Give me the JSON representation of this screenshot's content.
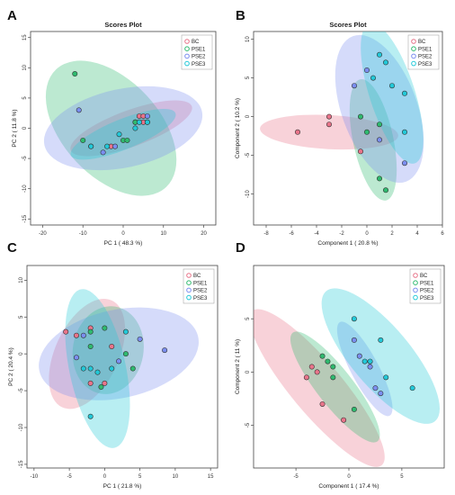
{
  "panels": [
    {
      "letter": "A",
      "title": "Scores Plot",
      "xlabel": "PC 1 ( 48.3 %)",
      "ylabel": "PC 2 ( 11.8 %)",
      "xlim": [
        -23,
        23
      ],
      "ylim": [
        -16,
        16
      ],
      "xticks": [
        -20,
        -10,
        0,
        10,
        20
      ],
      "yticks": [
        -15,
        -10,
        -5,
        0,
        5,
        10,
        15
      ],
      "legend": [
        "BC",
        "PSE1",
        "PSE2",
        "PSE3"
      ]
    },
    {
      "letter": "B",
      "title": "Scores Plot",
      "xlabel": "Component 1 ( 20.8 %)",
      "ylabel": "Component 2 ( 10.2 %)",
      "xlim": [
        -9,
        6
      ],
      "ylim": [
        -14,
        11
      ],
      "xticks": [
        -8,
        -6,
        -4,
        -2,
        0,
        2,
        4,
        6
      ],
      "yticks": [
        -10,
        -5,
        0,
        5,
        10
      ],
      "legend": [
        "BC",
        "PSE1",
        "PSE2",
        "PSE3"
      ]
    },
    {
      "letter": "C",
      "title": "",
      "xlabel": "PC 1 ( 21.8 %)",
      "ylabel": "PC 2 ( 20.4 %)",
      "xlim": [
        -11,
        16
      ],
      "ylim": [
        -15.5,
        12
      ],
      "xticks": [
        -10,
        -5,
        0,
        5,
        10,
        15
      ],
      "yticks": [
        -15,
        -10,
        -5,
        0,
        5,
        10
      ],
      "legend": [
        "BC",
        "PSE1",
        "PSE2",
        "PSE3"
      ]
    },
    {
      "letter": "D",
      "title": "",
      "xlabel": "Component 1 ( 17.4 %)",
      "ylabel": "Component 2 ( 11 %)",
      "xlim": [
        -9,
        9
      ],
      "ylim": [
        -9,
        10
      ],
      "xticks": [
        -5,
        0,
        5
      ],
      "yticks": [
        -5,
        0,
        5
      ],
      "legend": [
        "BC",
        "PSE1",
        "PSE2",
        "PSE3"
      ]
    }
  ],
  "colors": {
    "BC": "#e8748a",
    "PSE1": "#2fba6f",
    "PSE2": "#7b8ef0",
    "PSE3": "#22c9d8"
  },
  "chart_data": [
    {
      "type": "scatter",
      "title": "Scores Plot",
      "xlabel": "PC 1 ( 48.3 %)",
      "ylabel": "PC 2 ( 11.8 %)",
      "xlim": [
        -23,
        23
      ],
      "ylim": [
        -16,
        16
      ],
      "series": [
        {
          "name": "BC",
          "points": [
            [
              -3,
              -3
            ],
            [
              3,
              1
            ],
            [
              4,
              2
            ],
            [
              5,
              2
            ],
            [
              5,
              1
            ],
            [
              6,
              1
            ]
          ],
          "ellipse": {
            "cx": 2,
            "cy": 0,
            "rx": 16,
            "ry": 3,
            "angle": 20
          }
        },
        {
          "name": "PSE1",
          "points": [
            [
              -12,
              9
            ],
            [
              -10,
              -2
            ],
            [
              -8,
              -3
            ],
            [
              0,
              -2
            ],
            [
              1,
              -2
            ],
            [
              3,
              1
            ]
          ],
          "ellipse": {
            "cx": -3,
            "cy": 0,
            "rx": 20,
            "ry": 8,
            "angle": -47
          }
        },
        {
          "name": "PSE2",
          "points": [
            [
              -11,
              3
            ],
            [
              -5,
              -4
            ],
            [
              -2,
              -3
            ],
            [
              6,
              2
            ]
          ],
          "ellipse": {
            "cx": 0,
            "cy": 0,
            "rx": 20,
            "ry": 6.5,
            "angle": 12
          }
        },
        {
          "name": "PSE3",
          "points": [
            [
              -8,
              -3
            ],
            [
              -4,
              -3
            ],
            [
              -1,
              -1
            ],
            [
              3,
              0
            ],
            [
              4,
              1
            ],
            [
              6,
              1
            ]
          ],
          "ellipse": {
            "cx": 0,
            "cy": -1,
            "rx": 14,
            "ry": 2.5,
            "angle": 22
          }
        }
      ]
    },
    {
      "type": "scatter",
      "title": "Scores Plot",
      "xlabel": "Component 1 ( 20.8 %)",
      "ylabel": "Component 2 ( 10.2 %)",
      "xlim": [
        -9,
        6
      ],
      "ylim": [
        -14,
        11
      ],
      "series": [
        {
          "name": "BC",
          "points": [
            [
              -5.5,
              -2
            ],
            [
              -3,
              -1
            ],
            [
              -3,
              0
            ],
            [
              -0.5,
              -4.5
            ]
          ],
          "ellipse": {
            "cx": -3,
            "cy": -2,
            "rx": 5.5,
            "ry": 2.2,
            "angle": -3
          }
        },
        {
          "name": "PSE1",
          "points": [
            [
              -0.5,
              0
            ],
            [
              0,
              -2
            ],
            [
              1,
              -1
            ],
            [
              1,
              -8
            ],
            [
              1.5,
              -9.5
            ]
          ],
          "ellipse": {
            "cx": 0.5,
            "cy": -3,
            "rx": 1.6,
            "ry": 8,
            "angle": 12
          }
        },
        {
          "name": "PSE2",
          "points": [
            [
              -1,
              4
            ],
            [
              0,
              6
            ],
            [
              1,
              -3
            ],
            [
              3,
              -6
            ]
          ],
          "ellipse": {
            "cx": 1,
            "cy": 1,
            "rx": 3,
            "ry": 10,
            "angle": 20
          }
        },
        {
          "name": "PSE3",
          "points": [
            [
              0.5,
              5
            ],
            [
              1,
              8
            ],
            [
              1.5,
              7
            ],
            [
              2,
              4
            ],
            [
              3,
              3
            ],
            [
              3,
              -2
            ]
          ],
          "ellipse": {
            "cx": 2,
            "cy": 3,
            "rx": 1.8,
            "ry": 9.5,
            "angle": 18
          }
        }
      ]
    },
    {
      "type": "scatter",
      "xlabel": "PC 1 ( 21.8 %)",
      "ylabel": "PC 2 ( 20.4 %)",
      "xlim": [
        -11,
        16
      ],
      "ylim": [
        -15.5,
        12
      ],
      "series": [
        {
          "name": "BC",
          "points": [
            [
              -5.5,
              3
            ],
            [
              -4,
              2.5
            ],
            [
              -2,
              3.5
            ],
            [
              1,
              1
            ],
            [
              0,
              -4
            ],
            [
              -2,
              -4
            ]
          ],
          "ellipse": {
            "cx": -2.5,
            "cy": 0,
            "rx": 4.5,
            "ry": 8,
            "angle": -25
          }
        },
        {
          "name": "PSE1",
          "points": [
            [
              -2,
              3
            ],
            [
              -2,
              1
            ],
            [
              0,
              3.5
            ],
            [
              3,
              0
            ],
            [
              4,
              -2
            ],
            [
              -0.5,
              -4.5
            ]
          ],
          "ellipse": {
            "cx": 0.5,
            "cy": 0.5,
            "rx": 5,
            "ry": 6,
            "angle": -10
          }
        },
        {
          "name": "PSE2",
          "points": [
            [
              -3,
              2.5
            ],
            [
              -4,
              -0.5
            ],
            [
              2,
              -1
            ],
            [
              5,
              2
            ],
            [
              8.5,
              0.5
            ]
          ],
          "ellipse": {
            "cx": 2,
            "cy": 0,
            "rx": 11.5,
            "ry": 6,
            "angle": 12
          }
        },
        {
          "name": "PSE3",
          "points": [
            [
              -3,
              -2
            ],
            [
              -2,
              -2
            ],
            [
              -1,
              -2.5
            ],
            [
              -2,
              -8.5
            ],
            [
              3,
              3
            ],
            [
              1,
              -2
            ]
          ],
          "ellipse": {
            "cx": -1,
            "cy": -2,
            "rx": 4,
            "ry": 11,
            "angle": 12
          }
        }
      ]
    },
    {
      "type": "scatter",
      "xlabel": "Component 1 ( 17.4 %)",
      "ylabel": "Component 2 ( 11 %)",
      "xlim": [
        -9,
        9
      ],
      "ylim": [
        -9,
        10
      ],
      "series": [
        {
          "name": "BC",
          "points": [
            [
              -4,
              -0.5
            ],
            [
              -3,
              0
            ],
            [
              -3.5,
              0.5
            ],
            [
              -2.5,
              -3
            ],
            [
              -0.5,
              -4.5
            ]
          ],
          "ellipse": {
            "cx": -3,
            "cy": -1.5,
            "rx": 9.5,
            "ry": 2.4,
            "angle": -50
          }
        },
        {
          "name": "PSE1",
          "points": [
            [
              -2.5,
              1.5
            ],
            [
              -1.5,
              0.5
            ],
            [
              -1.5,
              -0.5
            ],
            [
              0.5,
              -3.5
            ],
            [
              -2,
              1
            ]
          ],
          "ellipse": {
            "cx": -1.3,
            "cy": -1.4,
            "rx": 6.5,
            "ry": 1.7,
            "angle": -52
          }
        },
        {
          "name": "PSE2",
          "points": [
            [
              0.5,
              3
            ],
            [
              1,
              1.5
            ],
            [
              2,
              0.5
            ],
            [
              2.5,
              -1.5
            ],
            [
              3,
              -2
            ]
          ],
          "ellipse": {
            "cx": 1.5,
            "cy": 0.3,
            "rx": 5,
            "ry": 1.3,
            "angle": -62
          }
        },
        {
          "name": "PSE3",
          "points": [
            [
              0.5,
              5
            ],
            [
              1.5,
              1
            ],
            [
              3,
              3
            ],
            [
              3.5,
              -0.5
            ],
            [
              6,
              -1.5
            ],
            [
              2,
              1
            ]
          ],
          "ellipse": {
            "cx": 3,
            "cy": 1.5,
            "rx": 8,
            "ry": 2.8,
            "angle": -50
          }
        }
      ]
    }
  ]
}
